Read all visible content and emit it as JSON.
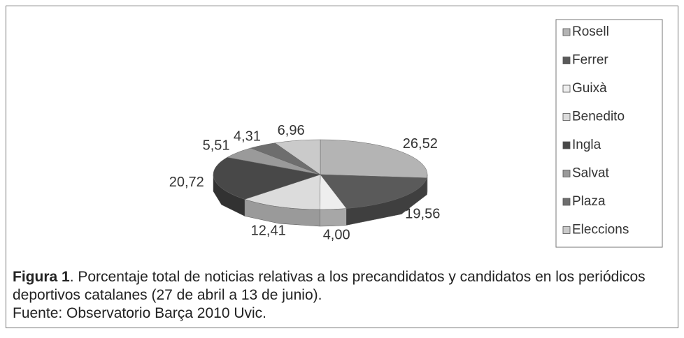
{
  "chart_data": {
    "type": "pie3d",
    "categories": [
      "Rosell",
      "Ferrer",
      "Guixà",
      "Benedito",
      "Ingla",
      "Salvat",
      "Plaza",
      "Eleccions"
    ],
    "values": [
      26.52,
      19.56,
      4.0,
      12.41,
      20.72,
      5.51,
      4.31,
      6.96
    ],
    "value_labels": [
      "26,52",
      "19,56",
      "4,00",
      "12,41",
      "20,72",
      "5,51",
      "4,31",
      "6,96"
    ],
    "colors": [
      "#b4b4b4",
      "#5a5a5a",
      "#eeeeee",
      "#dcdcdc",
      "#484848",
      "#9a9a9a",
      "#6e6e6e",
      "#cacaca"
    ],
    "legend": "right"
  },
  "caption": {
    "label": "Figura 1",
    "text": ". Porcentaje total de noticias relativas a los precandidatos y candidatos en los periódicos deportivos catalanes (27 de abril a 13 de junio).",
    "source": "Fuente: Observatorio Barça 2010 Uvic."
  }
}
